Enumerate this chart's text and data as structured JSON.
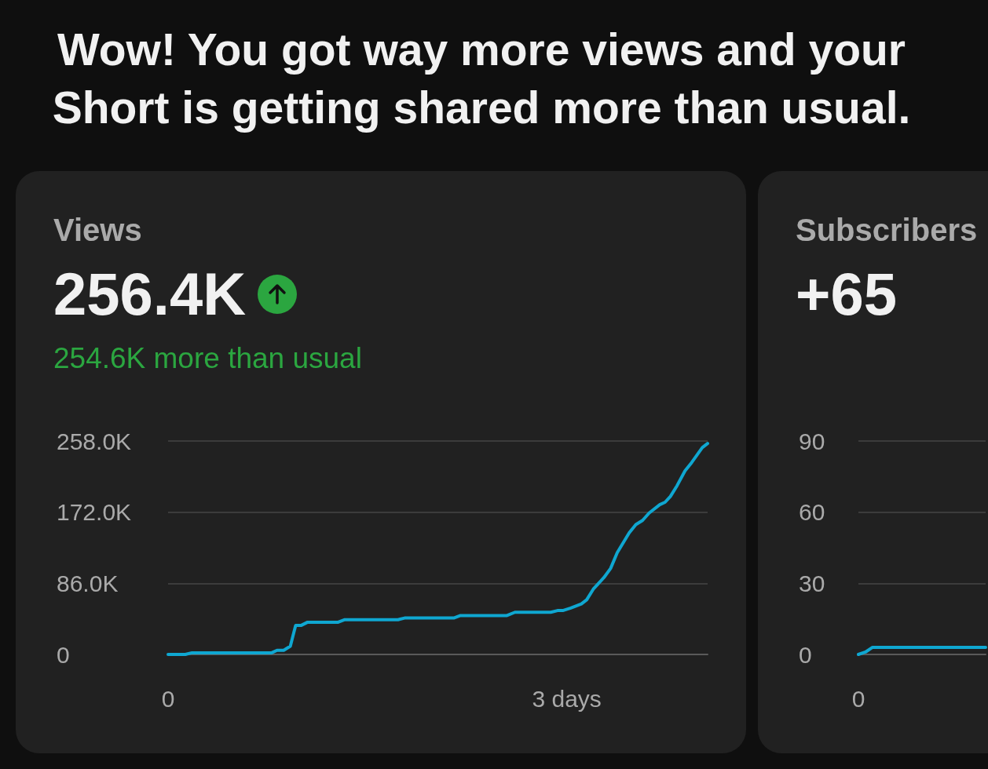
{
  "chart_data": [
    {
      "type": "line",
      "title": "Views",
      "subtitle": "256.4K",
      "annotations": [
        "Wow! You got way more views and your Short is getting shared more than usual.",
        "254.6K more than usual"
      ],
      "x": [
        0,
        0.13,
        0.18,
        0.78,
        0.82,
        0.87,
        0.92,
        0.96,
        1.0,
        1.05,
        1.28,
        1.33,
        1.73,
        1.78,
        2.15,
        2.2,
        2.55,
        2.61,
        2.88,
        2.93,
        2.97,
        3.03,
        3.11,
        3.15,
        3.2,
        3.28,
        3.33,
        3.38,
        3.47,
        3.52,
        3.57,
        3.62,
        3.7,
        3.74,
        3.78,
        3.83,
        3.89,
        3.94,
        3.98,
        4.02,
        4.06
      ],
      "series": [
        {
          "color": "#0fa7d1",
          "values": [
            0,
            0,
            2000,
            2000,
            5000,
            5000,
            10000,
            35000,
            35000,
            39000,
            39000,
            42000,
            42000,
            44000,
            44000,
            47000,
            47000,
            51000,
            51000,
            53000,
            53000,
            56000,
            61000,
            66000,
            79000,
            93000,
            104000,
            123000,
            147000,
            157000,
            162000,
            171000,
            181000,
            184000,
            191000,
            204000,
            222000,
            232000,
            241000,
            250000,
            255000
          ]
        }
      ],
      "xlim": [
        0,
        4.06
      ],
      "xticks": [
        0,
        {
          "value": 3,
          "label": "3 days"
        }
      ],
      "ylim": [
        0,
        258000
      ],
      "yticks": [
        0,
        {
          "value": 86000,
          "label": "86.0K"
        },
        {
          "value": 172000,
          "label": "172.0K"
        },
        {
          "value": 258000,
          "label": "258.0K"
        }
      ],
      "grid": "y",
      "marker": "none",
      "line_style": "solid"
    },
    {
      "type": "line",
      "title": "Subscribers",
      "subtitle": "+65",
      "categories": [
        "0",
        null,
        null,
        null,
        null,
        null,
        null,
        null,
        null,
        null,
        null,
        null,
        null,
        null,
        null,
        null,
        null,
        null,
        null
      ],
      "series": [
        {
          "color": "#0fa7d1",
          "values": [
            0,
            1,
            3,
            3,
            3,
            3,
            3,
            3,
            3,
            3,
            3,
            3,
            3,
            3,
            3,
            3,
            3,
            3,
            3
          ]
        }
      ],
      "ylim": [
        0,
        90
      ],
      "yticks": [
        0,
        30,
        60,
        90
      ],
      "grid": "y",
      "marker": "none",
      "line_style": "solid"
    }
  ]
}
